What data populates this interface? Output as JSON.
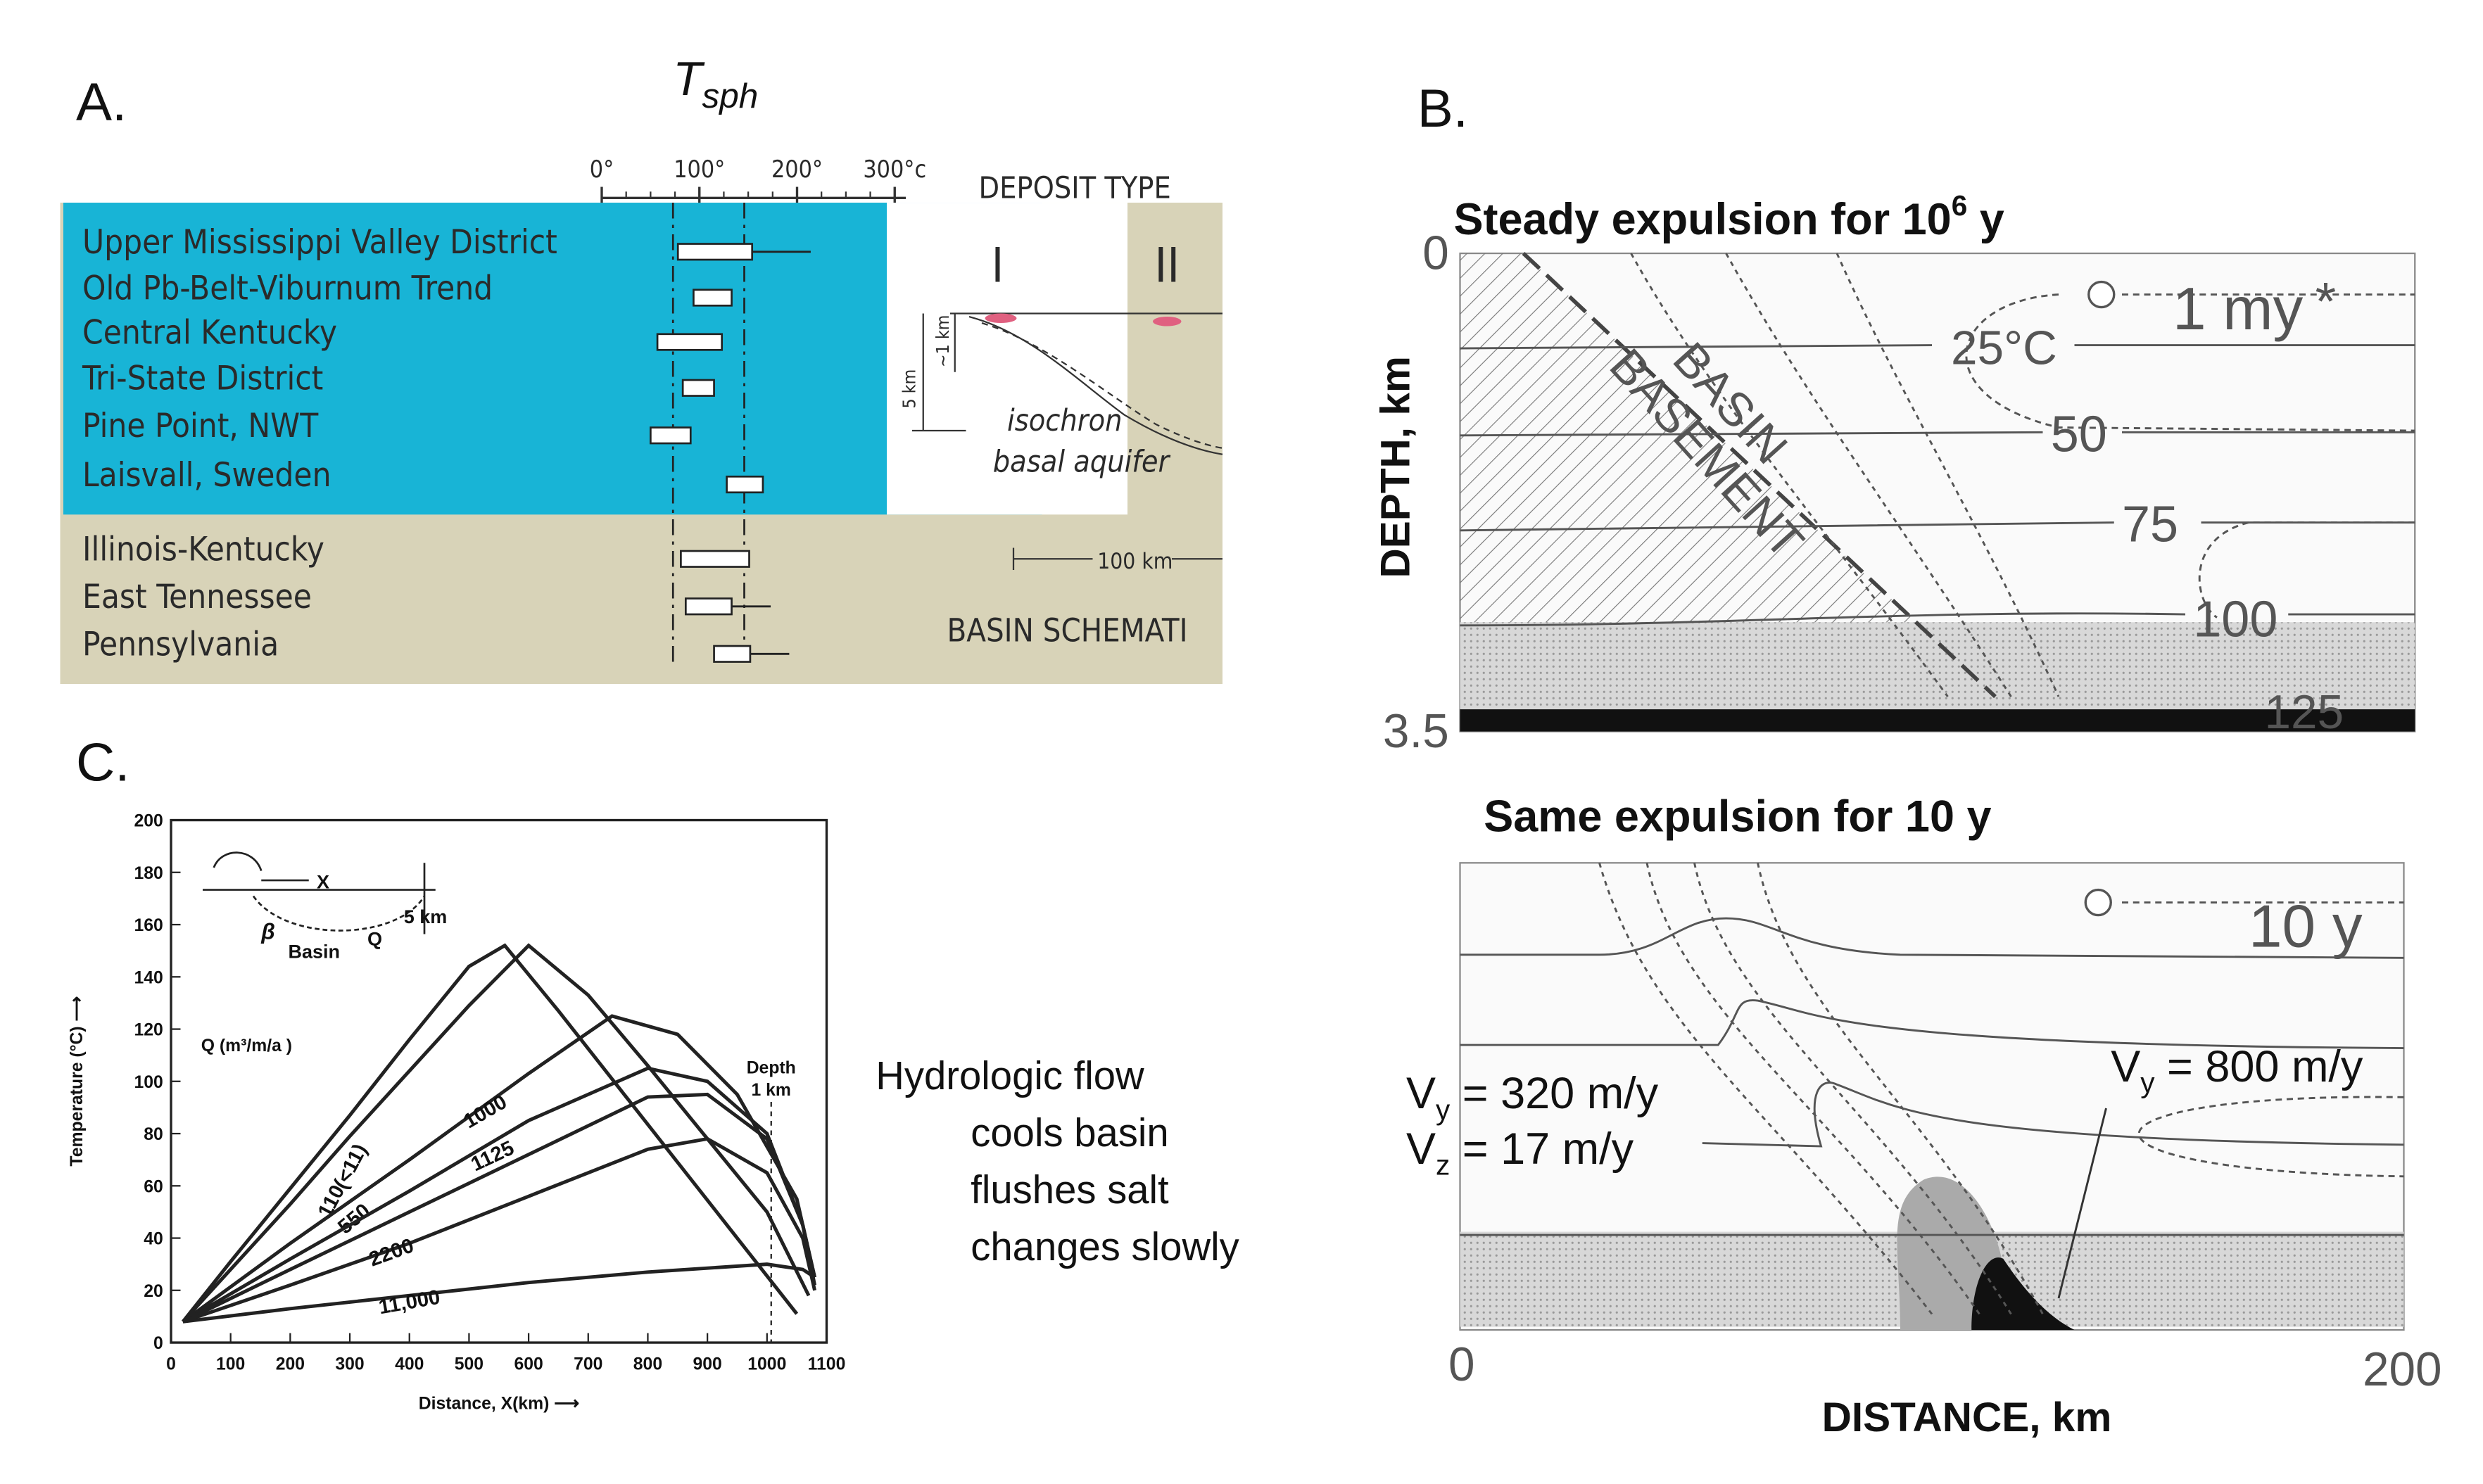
{
  "panel_a": {
    "label": "A.",
    "title": "T",
    "title_subscript": "sph",
    "axis": {
      "xlim": [
        0,
        300
      ],
      "ticks": [
        {
          "value": 0,
          "label": "0°"
        },
        {
          "value": 100,
          "label": "100°"
        },
        {
          "value": 200,
          "label": "200°"
        },
        {
          "value": 300,
          "label": "300°c"
        }
      ]
    },
    "deposit_type_header": "DEPOSIT TYPE",
    "type_labels": [
      "I",
      "II"
    ],
    "deposits": [
      {
        "name": "Upper Mississippi  Valley District",
        "range": [
          78,
          154
        ],
        "whisker": 214
      },
      {
        "name": "Old Pb-Belt-Viburnum Trend",
        "range": [
          94,
          133
        ]
      },
      {
        "name": "Central Kentucky",
        "range": [
          57,
          123
        ]
      },
      {
        "name": "Tri-State District",
        "range": [
          83,
          115
        ]
      },
      {
        "name": "Pine Point, NWT",
        "range": [
          50,
          91
        ]
      },
      {
        "name": "Laisvall,  Sweden",
        "range": [
          128,
          165
        ]
      },
      {
        "name": "Illinois-Kentucky",
        "range": [
          81,
          151
        ]
      },
      {
        "name": "East Tennessee",
        "range": [
          86,
          133
        ],
        "whisker": 173
      },
      {
        "name": "Pennsylvania",
        "range": [
          115,
          152
        ],
        "whisker": 192
      }
    ],
    "schematic": {
      "depth_5": "5 km",
      "depth_1": "~1 km",
      "isochron": "isochron",
      "aquifer": "basal aquifer",
      "scale": "100 km",
      "caption": "BASIN SCHEMATI"
    }
  },
  "panel_b": {
    "label": "B.",
    "top_title": "Steady expulsion for 10",
    "top_title_sup": "6",
    "top_title_end": " y",
    "bottom_title": "Same expulsion for 10 y",
    "y_axis_label": "DEPTH, km",
    "x_axis_label": "DISTANCE, km",
    "y_ticks": [
      "0",
      "3.5"
    ],
    "x_ticks": [
      "0",
      "200"
    ],
    "basin_label": "BASIN",
    "basement_label": "BASEMENT",
    "top_time": "1 my",
    "star": "*",
    "bottom_time": "10 y",
    "contours": [
      "25°C",
      "50",
      "75",
      "100",
      "125"
    ],
    "velocities": [
      {
        "symbol": "V",
        "subscript": "y",
        "text": " = 320 m/y"
      },
      {
        "symbol": "V",
        "subscript": "z",
        "text": " = 17 m/y"
      },
      {
        "symbol": "V",
        "subscript": "y",
        "text": " = 800 m/y"
      }
    ]
  },
  "panel_c": {
    "label": "C.",
    "chart_data": {
      "type": "line",
      "x_label": "Distance, X(km) ⟶",
      "y_label": "Temperature (°C) ⟶",
      "legend_title": "Q (m³/m/a )",
      "annotation": "Depth",
      "annotation_2": "1 km",
      "inset_labels": [
        "X",
        "β",
        "Basin",
        "Q",
        "5 km"
      ],
      "xlim": [
        0,
        1100
      ],
      "ylim": [
        0,
        200
      ],
      "xticks": [
        0,
        100,
        200,
        300,
        400,
        500,
        600,
        700,
        800,
        900,
        1000,
        1100
      ],
      "yticks": [
        0,
        20,
        40,
        60,
        80,
        100,
        120,
        140,
        160,
        180,
        200
      ],
      "color": "#222222",
      "series": [
        {
          "name": "(<11)",
          "x": [
            20,
            100,
            200,
            300,
            400,
            500,
            560,
            650,
            750,
            850,
            950,
            1050
          ],
          "values": [
            8,
            31,
            59,
            87,
            116,
            144,
            152,
            127,
            98,
            69,
            40,
            11
          ]
        },
        {
          "name": "110",
          "x": [
            20,
            100,
            200,
            300,
            400,
            500,
            600,
            700,
            800,
            900,
            1000,
            1070
          ],
          "values": [
            8,
            28,
            53,
            79,
            104,
            129,
            152,
            133,
            106,
            78,
            50,
            18
          ]
        },
        {
          "name": "550",
          "x": [
            20,
            200,
            400,
            600,
            740,
            850,
            950,
            1050,
            1080
          ],
          "values": [
            8,
            38,
            70,
            103,
            125,
            118,
            95,
            55,
            25
          ]
        },
        {
          "name": "1000",
          "x": [
            20,
            200,
            400,
            600,
            800,
            900,
            1000,
            1060,
            1080
          ],
          "values": [
            8,
            32,
            58,
            85,
            105,
            100,
            80,
            45,
            25
          ]
        },
        {
          "name": "1125",
          "x": [
            20,
            200,
            400,
            600,
            800,
            900,
            1000,
            1060,
            1080
          ],
          "values": [
            8,
            28,
            50,
            72,
            94,
            95,
            78,
            45,
            22
          ]
        },
        {
          "name": "2200",
          "x": [
            20,
            200,
            400,
            600,
            800,
            900,
            1000,
            1060,
            1080
          ],
          "values": [
            8,
            22,
            38,
            56,
            74,
            78,
            65,
            40,
            20
          ]
        },
        {
          "name": "11,000",
          "x": [
            20,
            200,
            400,
            600,
            800,
            1000,
            1060,
            1080
          ],
          "values": [
            8,
            13,
            18,
            23,
            27,
            30,
            28,
            25
          ]
        }
      ]
    },
    "notes": [
      "Hydrologic flow",
      "cools basin",
      "flushes salt",
      "changes slowly"
    ]
  }
}
